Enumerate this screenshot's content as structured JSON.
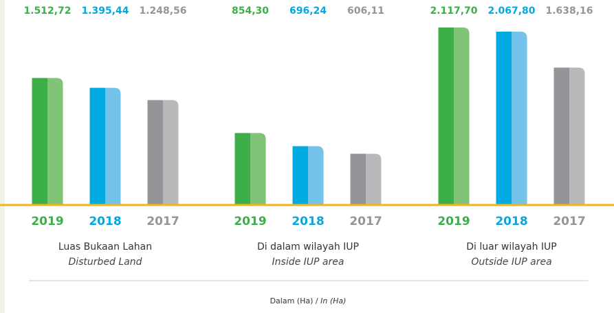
{
  "chart_data": {
    "type": "bar",
    "categories": [
      "Luas Bukaan Lahan",
      "Di dalam wilayah IUP",
      "Di luar wilayah IUP"
    ],
    "categories_en": [
      "Disturbed Land",
      "Inside IUP area",
      "Outside IUP area"
    ],
    "series": [
      {
        "name": "2019",
        "color": "#3daf48",
        "color_light": "#80c477",
        "values": [
          1512.72,
          854.3,
          2117.7
        ],
        "value_labels": [
          "1.512,72",
          "854,30",
          "2.117,70"
        ]
      },
      {
        "name": "2018",
        "color": "#00a9e0",
        "color_light": "#72c2ea",
        "values": [
          1395.44,
          696.24,
          2067.8
        ],
        "value_labels": [
          "1.395,44",
          "696,24",
          "2.067,80"
        ]
      },
      {
        "name": "2017",
        "color": "#939598",
        "color_light": "#b8b9bb",
        "values": [
          1248.56,
          606.11,
          1638.16
        ],
        "value_labels": [
          "1.248,56",
          "606,11",
          "1.638,16"
        ]
      }
    ],
    "unit_note": "Dalam (Ha) /",
    "unit_note_en": "In (Ha)"
  }
}
